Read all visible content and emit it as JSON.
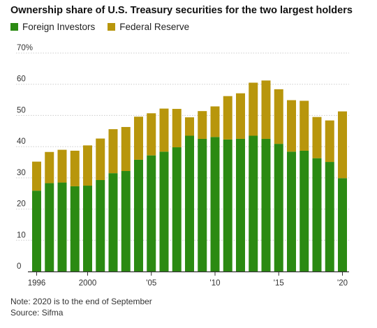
{
  "title": "Ownership share of U.S. Treasury securities for the two largest holders",
  "note": "Note: 2020 is to the end of September",
  "source": "Source: Sifma",
  "colors": {
    "foreign": "#2b8a12",
    "fed": "#b8960c",
    "grid": "#cccccc",
    "axis": "#333333"
  },
  "chart_data": {
    "type": "bar",
    "stacked": true,
    "x": [
      1996,
      1997,
      1998,
      1999,
      2000,
      2001,
      2002,
      2003,
      2004,
      2005,
      2006,
      2007,
      2008,
      2009,
      2010,
      2011,
      2012,
      2013,
      2014,
      2015,
      2016,
      2017,
      2018,
      2019,
      2020
    ],
    "x_tick_labels": [
      {
        "year": 1996,
        "label": "1996"
      },
      {
        "year": 2000,
        "label": "2000"
      },
      {
        "year": 2005,
        "label": "'05"
      },
      {
        "year": 2010,
        "label": "'10"
      },
      {
        "year": 2015,
        "label": "'15"
      },
      {
        "year": 2020,
        "label": "'20"
      }
    ],
    "y_tick_labels": [
      {
        "value": 0,
        "label": "0"
      },
      {
        "value": 10,
        "label": "10"
      },
      {
        "value": 20,
        "label": "20"
      },
      {
        "value": 30,
        "label": "30"
      },
      {
        "value": 40,
        "label": "40"
      },
      {
        "value": 50,
        "label": "50"
      },
      {
        "value": 60,
        "label": "60"
      },
      {
        "value": 70,
        "label": "70%"
      }
    ],
    "ylim": [
      0,
      70
    ],
    "grid": true,
    "legend_position": "top-left",
    "series": [
      {
        "name": "Foreign Investors",
        "color": "#2b8a12",
        "values": [
          25.9,
          28.3,
          28.5,
          27.3,
          27.5,
          29.3,
          31.5,
          32.2,
          35.8,
          37.2,
          38.4,
          39.8,
          43.5,
          42.5,
          43.1,
          42.3,
          42.5,
          43.5,
          42.5,
          40.9,
          38.4,
          38.7,
          36.3,
          35.1,
          29.9
        ]
      },
      {
        "name": "Federal Reserve",
        "color": "#b8960c",
        "values": [
          9.3,
          10.0,
          10.5,
          11.4,
          12.9,
          13.3,
          14.1,
          14.1,
          13.8,
          13.5,
          13.8,
          12.3,
          5.9,
          8.9,
          9.8,
          13.9,
          14.6,
          17.0,
          18.7,
          17.5,
          16.5,
          16.0,
          13.2,
          13.3,
          21.4
        ]
      }
    ]
  }
}
